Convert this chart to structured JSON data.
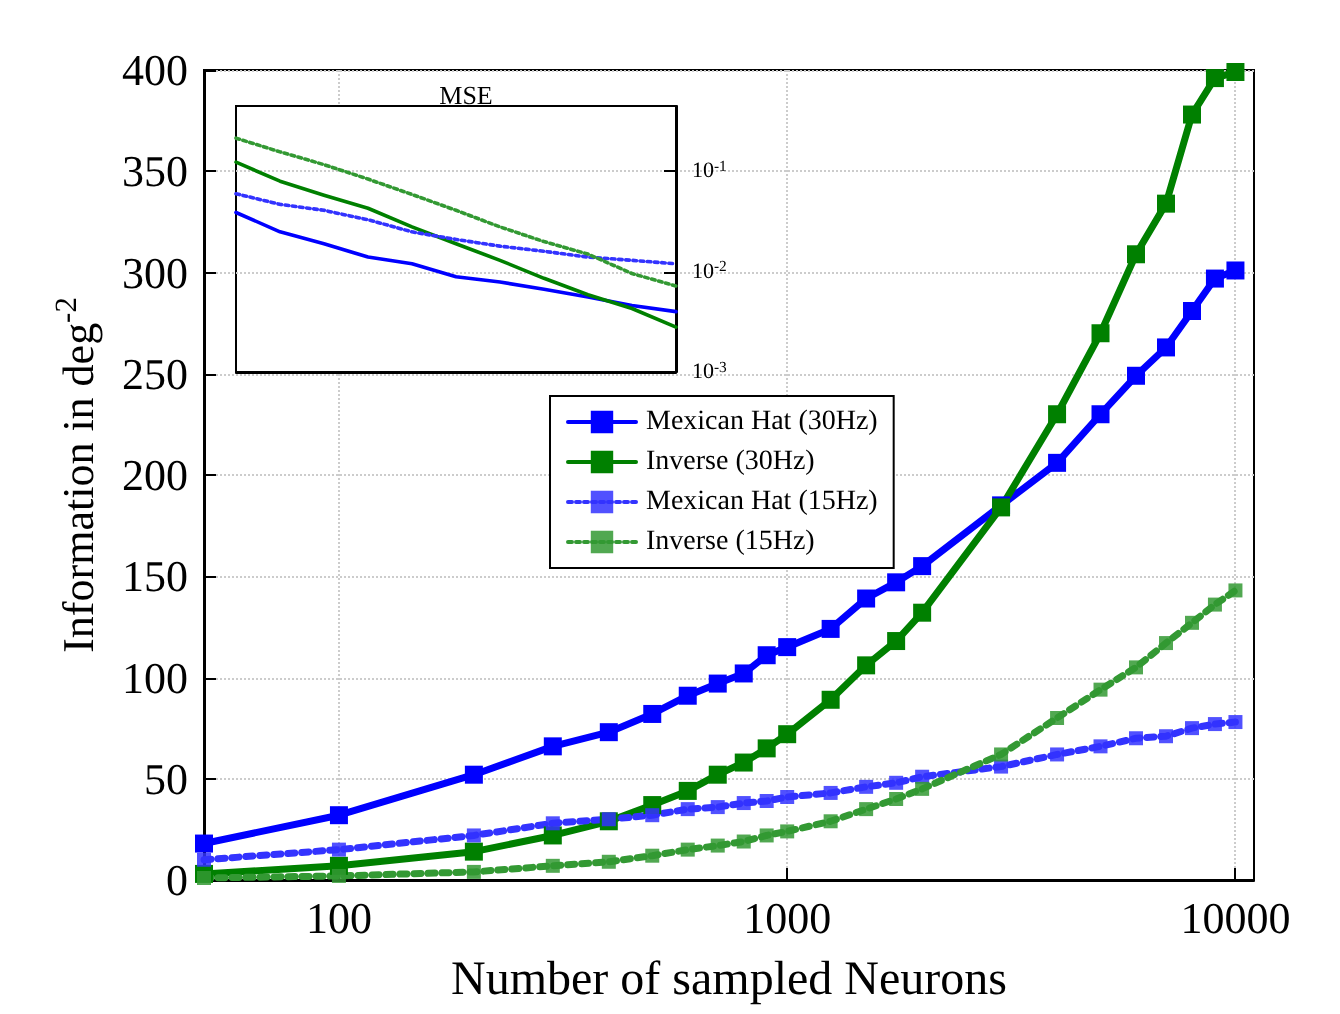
{
  "chart_data": [
    {
      "type": "line",
      "xlabel": "Number of sampled Neurons",
      "ylabel": "Information in deg$^{-2}$",
      "log": "x",
      "xlim": [
        50,
        11000
      ],
      "xticks": [
        100,
        1000,
        10000
      ],
      "ylim": [
        0,
        400
      ],
      "yticks": [
        0,
        50,
        100,
        150,
        200,
        250,
        300,
        350,
        400
      ],
      "grid": true,
      "legend": "center",
      "marker": "square",
      "x": [
        50,
        100,
        200,
        300,
        400,
        500,
        600,
        700,
        800,
        900,
        1000,
        1250,
        1500,
        1750,
        2000,
        3000,
        4000,
        5000,
        6000,
        7000,
        8000,
        9000,
        10000
      ],
      "series": [
        {
          "name": "Mexican Hat (30Hz)",
          "color": "#0000ff",
          "line_style": "solid",
          "values": [
            18,
            32,
            52,
            66,
            73,
            82,
            91,
            97,
            102,
            111,
            115,
            124,
            139,
            147,
            155,
            185,
            206,
            230,
            249,
            263,
            281,
            297,
            301
          ]
        },
        {
          "name": "Inverse (30Hz)",
          "color": "#008000",
          "line_style": "solid",
          "values": [
            3,
            7,
            14,
            22,
            29,
            37,
            44,
            52,
            58,
            65,
            72,
            89,
            106,
            118,
            132,
            184,
            230,
            270,
            309,
            334,
            378,
            396,
            399
          ]
        },
        {
          "name": "Mexican Hat (15Hz)",
          "color": "#3333ff",
          "line_style": "dotted",
          "values": [
            10,
            15,
            22,
            28,
            30,
            32,
            35,
            36,
            38,
            39,
            41,
            43,
            46,
            48,
            51,
            56,
            62,
            66,
            70,
            71,
            75,
            77,
            78
          ]
        },
        {
          "name": "Inverse (15Hz)",
          "color": "#339933",
          "line_style": "dotted",
          "values": [
            1,
            2,
            4,
            7,
            9,
            12,
            15,
            17,
            19,
            22,
            24,
            29,
            35,
            40,
            45,
            62,
            80,
            94,
            105,
            117,
            127,
            136,
            143
          ]
        }
      ]
    },
    {
      "type": "line",
      "title": "MSE",
      "log": "y",
      "ylim": [
        0.001,
        0.45
      ],
      "yticks": [
        {
          "value": 0.001,
          "label": "10$^{-3}$"
        },
        {
          "value": 0.01,
          "label": "10$^{-2}$"
        },
        {
          "value": 0.1,
          "label": "10$^{-1}$"
        }
      ],
      "tick_labels": "y",
      "grid": "y",
      "marker": "none",
      "categories": [
        null,
        null,
        null,
        null,
        null,
        null,
        null,
        null,
        null,
        null,
        null
      ],
      "series": [
        {
          "color": "#0000ff",
          "line_style": "solid",
          "values": [
            0.039,
            0.025,
            0.019,
            0.014,
            0.012,
            0.0089,
            0.0079,
            0.0067,
            0.0056,
            0.0046,
            0.004
          ]
        },
        {
          "color": "#008000",
          "line_style": "solid",
          "values": [
            0.124,
            0.08,
            0.058,
            0.043,
            0.028,
            0.019,
            0.013,
            0.0086,
            0.0059,
            0.0043,
            0.0028
          ]
        },
        {
          "color": "#3333ff",
          "line_style": "dotted",
          "values": [
            0.06,
            0.047,
            0.041,
            0.033,
            0.025,
            0.021,
            0.018,
            0.016,
            0.014,
            0.013,
            0.012
          ]
        },
        {
          "color": "#339933",
          "line_style": "dotted",
          "values": [
            0.215,
            0.157,
            0.117,
            0.084,
            0.059,
            0.041,
            0.028,
            0.02,
            0.015,
            0.0096,
            0.0072
          ]
        }
      ]
    }
  ]
}
